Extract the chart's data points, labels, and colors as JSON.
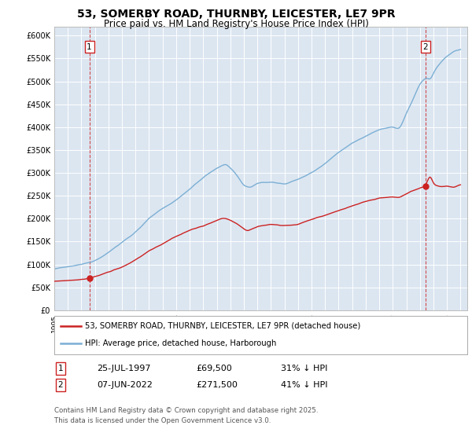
{
  "title_line1": "53, SOMERBY ROAD, THURNBY, LEICESTER, LE7 9PR",
  "title_line2": "Price paid vs. HM Land Registry's House Price Index (HPI)",
  "background_color": "#dce6f1",
  "plot_bg_color": "#dce6f1",
  "hpi_color": "#7bafd4",
  "price_color": "#cc2222",
  "sale1_date": "25-JUL-1997",
  "sale1_price": 69500,
  "sale1_label": "31% ↓ HPI",
  "sale1_year": 1997.56,
  "sale2_date": "07-JUN-2022",
  "sale2_price": 271500,
  "sale2_label": "41% ↓ HPI",
  "sale2_year": 2022.44,
  "legend_line1": "53, SOMERBY ROAD, THURNBY, LEICESTER, LE7 9PR (detached house)",
  "legend_line2": "HPI: Average price, detached house, Harborough",
  "footer": "Contains HM Land Registry data © Crown copyright and database right 2025.\nThis data is licensed under the Open Government Licence v3.0.",
  "ylim_max": 620000,
  "ylim_min": 0,
  "xlim_min": 1995,
  "xlim_max": 2025.5
}
